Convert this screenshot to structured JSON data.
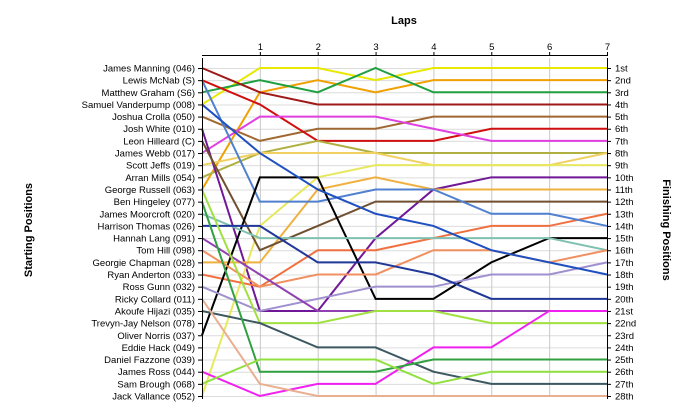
{
  "chart_data": {
    "type": "line",
    "title": "",
    "xlabel_top": "Laps",
    "ylabel_left": "Starting Positions",
    "ylabel_right": "Finishing Positions",
    "x": [
      0,
      1,
      2,
      3,
      4,
      5,
      6,
      7
    ],
    "x_tick_labels": [
      "1",
      "2",
      "3",
      "4",
      "5",
      "6",
      "7"
    ],
    "y_range": [
      1,
      28
    ],
    "y_inverted": true,
    "grid": true,
    "starting_labels": [
      "James Manning (046)",
      "Lewis McNab (S)",
      "Matthew Graham (S6)",
      "Samuel Vanderpump (008)",
      "Joshua Crolla (050)",
      "Josh White (010)",
      "Leon Hilleard (C)",
      "James Webb (017)",
      "Scott Jeffs (019)",
      "Arran Mills (054)",
      "George Russell (063)",
      "Ben Hingeley (077)",
      "James Moorcroft (020)",
      "Harrison Thomas (026)",
      "Hannah Lang (091)",
      "Tom Hill (098)",
      "Georgie Chapman (028)",
      "Ryan Anderton (033)",
      "Ross Gunn (032)",
      "Ricky Collard (011)",
      "Akoufe Hijazi (035)",
      "Trevyn-Jay Nelson (078)",
      "Oliver Norris (037)",
      "Eddie Hack (049)",
      "Daniel Fazzone (039)",
      "James Ross (044)",
      "Sam Brough (068)",
      "Jack Vallance (052)"
    ],
    "finishing_labels": [
      "1st",
      "2nd",
      "3rd",
      "4th",
      "5th",
      "6th",
      "7th",
      "8th",
      "9th",
      "10th",
      "11th",
      "12th",
      "13th",
      "14th",
      "15th",
      "16th",
      "17th",
      "18th",
      "19th",
      "20th",
      "21st",
      "22nd",
      "23rd",
      "24th",
      "25th",
      "26th",
      "27th",
      "28th"
    ],
    "series": [
      {
        "color": "#e8e800",
        "values": [
          4,
          1,
          1,
          2,
          1,
          1,
          1,
          1
        ]
      },
      {
        "color": "#f0a000",
        "values": [
          11,
          3,
          2,
          3,
          2,
          2,
          2,
          2
        ]
      },
      {
        "color": "#20a040",
        "values": [
          3,
          2,
          3,
          1,
          3,
          3,
          3,
          3
        ]
      },
      {
        "color": "#a01818",
        "values": [
          1,
          3,
          4,
          4,
          4,
          4,
          4,
          4
        ]
      },
      {
        "color": "#a06830",
        "values": [
          5,
          7,
          6,
          6,
          5,
          5,
          5,
          5
        ]
      },
      {
        "color": "#d01010",
        "values": [
          2,
          4,
          7,
          7,
          7,
          6,
          6,
          6
        ]
      },
      {
        "color": "#e040e0",
        "values": [
          8,
          5,
          5,
          5,
          6,
          7,
          7,
          7
        ]
      },
      {
        "color": "#b0b040",
        "values": [
          10,
          8,
          7,
          8,
          8,
          8,
          8,
          8
        ]
      },
      {
        "color": "#f0d060",
        "values": [
          9,
          8,
          8,
          8,
          9,
          9,
          9,
          8
        ]
      },
      {
        "color": "#701898",
        "values": [
          6,
          21,
          21,
          15,
          11,
          10,
          10,
          10
        ]
      },
      {
        "color": "#e8e860",
        "values": [
          28,
          14,
          10,
          9,
          9,
          9,
          9,
          9
        ]
      },
      {
        "color": "#f0b040",
        "values": [
          17,
          17,
          11,
          10,
          11,
          11,
          11,
          11
        ]
      },
      {
        "color": "#705030",
        "values": [
          7,
          16,
          14,
          12,
          12,
          12,
          12,
          12
        ]
      },
      {
        "color": "#f07040",
        "values": [
          18,
          19,
          16,
          16,
          15,
          14,
          14,
          13
        ]
      },
      {
        "color": "#5080d0",
        "values": [
          2,
          12,
          12,
          11,
          11,
          13,
          13,
          14
        ]
      },
      {
        "color": "#000000",
        "values": [
          23,
          10,
          10,
          20,
          20,
          17,
          15,
          15
        ]
      },
      {
        "color": "#80c0b0",
        "values": [
          13,
          15,
          15,
          15,
          15,
          15,
          15,
          16
        ]
      },
      {
        "color": "#f09060",
        "values": [
          16,
          19,
          18,
          18,
          16,
          16,
          17,
          16
        ]
      },
      {
        "color": "#a090d0",
        "values": [
          19,
          21,
          20,
          19,
          19,
          18,
          18,
          17
        ]
      },
      {
        "color": "#203898",
        "values": [
          14,
          14,
          17,
          17,
          18,
          20,
          20,
          20
        ]
      },
      {
        "color": "#9040b0",
        "values": [
          15,
          18,
          21,
          21,
          21,
          21,
          21,
          21
        ]
      },
      {
        "color": "#a0e040",
        "values": [
          11,
          22,
          22,
          21,
          21,
          22,
          22,
          22
        ]
      },
      {
        "color": "#2050c0",
        "values": [
          4,
          8,
          11,
          13,
          14,
          16,
          17,
          18
        ]
      },
      {
        "color": "#3c5860",
        "values": [
          21,
          22,
          24,
          24,
          26,
          27,
          27,
          27
        ]
      },
      {
        "color": "#f020f0",
        "values": [
          26,
          28,
          27,
          27,
          24,
          24,
          21,
          21
        ]
      },
      {
        "color": "#30a040",
        "values": [
          12,
          26,
          26,
          26,
          25,
          25,
          25,
          25
        ]
      },
      {
        "color": "#90e040",
        "values": [
          27,
          25,
          25,
          25,
          27,
          26,
          26,
          26
        ]
      },
      {
        "color": "#e8b090",
        "values": [
          20,
          27,
          28,
          28,
          28,
          28,
          28,
          28
        ]
      }
    ]
  }
}
